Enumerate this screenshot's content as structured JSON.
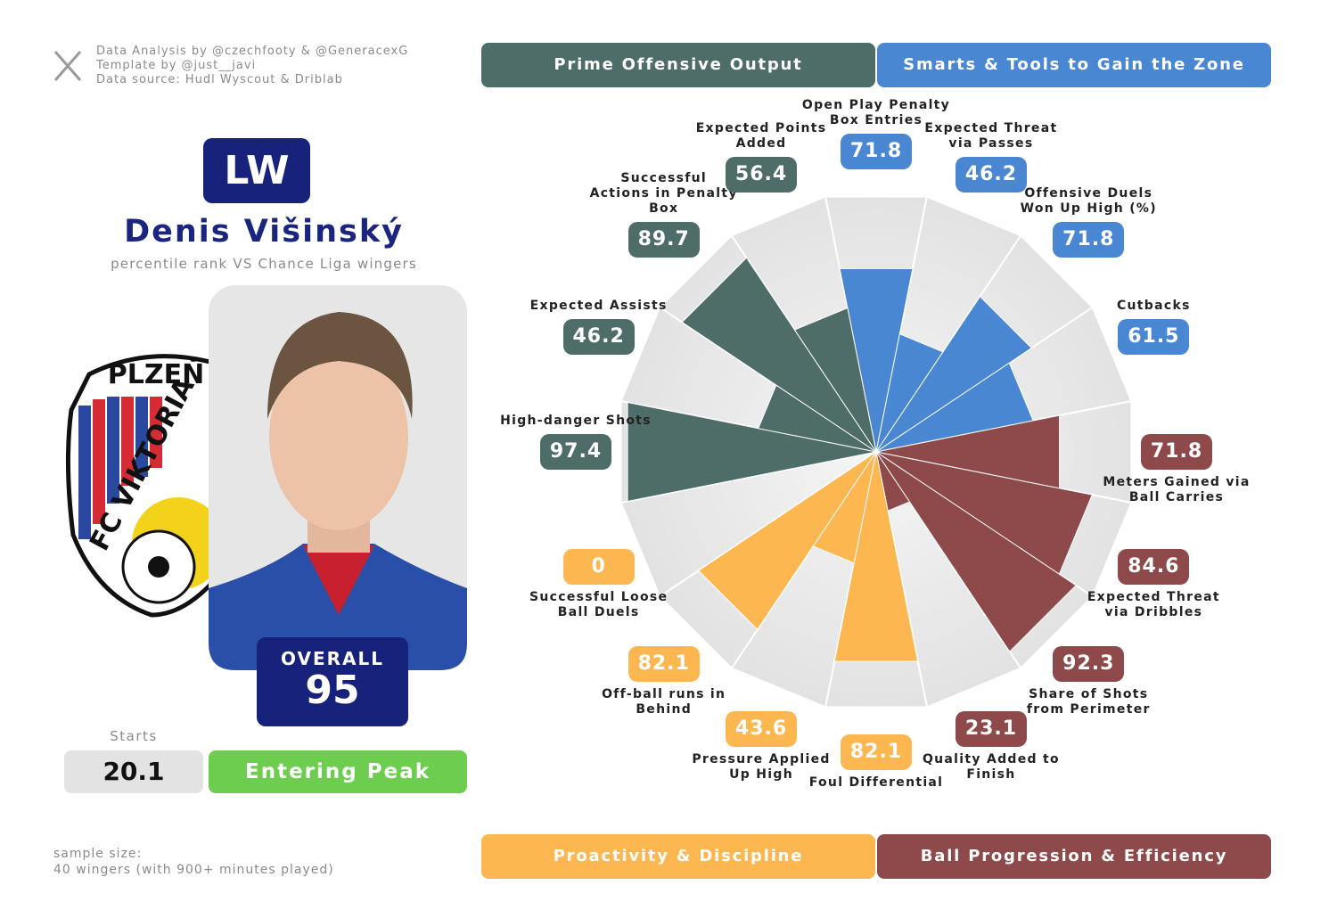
{
  "credits": [
    "Data Analysis by @czechfooty & @GeneracexG",
    "Template by @just__javi",
    "Data source: Hudl Wyscout & Driblab"
  ],
  "player": {
    "position": "LW",
    "name": "Denis Višinský",
    "subtitle": "percentile rank VS Chance Liga wingers",
    "overall_label": "OVERALL",
    "overall": 95,
    "starts_label": "Starts",
    "starts": 20.1,
    "stage": "Entering Peak"
  },
  "club_logo": {
    "top": "PLZEŇ",
    "ring": "FC VIKTORIA"
  },
  "footer": {
    "sample_label": "sample size:",
    "sample": "40 wingers (with 900+ minutes played)"
  },
  "chart_data": {
    "type": "pizza",
    "rlim": [
      0,
      100
    ],
    "series": [
      {
        "name": "Smarts & Tools to Gain the Zone",
        "color": "#4a87d3",
        "categories": [
          "Open Play Penalty Box Entries",
          "Expected Threat via Passes",
          "Offensive Duels Won Up High (%)",
          "Cutbacks"
        ],
        "values": [
          71.8,
          46.2,
          71.8,
          61.5
        ]
      },
      {
        "name": "Ball Progression & Efficiency",
        "color": "#8e4a4a",
        "categories": [
          "Meters Gained via Ball Carries",
          "Expected Threat via Dribbles",
          "Share of Shots from Perimeter",
          "Quality Added to Finish"
        ],
        "values": [
          71.8,
          84.6,
          92.3,
          23.1
        ]
      },
      {
        "name": "Proactivity & Discipline",
        "color": "#fdb751",
        "categories": [
          "Foul Differential",
          "Pressure Applied Up High",
          "Off-ball runs in Behind",
          "Successful Loose Ball Duels"
        ],
        "values": [
          82.1,
          43.6,
          82.1,
          0
        ]
      },
      {
        "name": "Prime Offensive Output",
        "color": "#4f6d68",
        "categories": [
          "High-danger Shots",
          "Expected Assists",
          "Successful Actions in Penalty Box",
          "Expected Points Added"
        ],
        "values": [
          97.4,
          46.2,
          89.7,
          56.4
        ]
      }
    ]
  }
}
